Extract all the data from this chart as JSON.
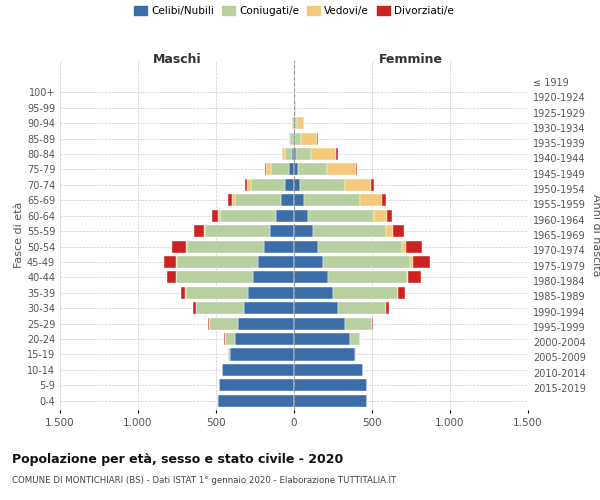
{
  "age_groups": [
    "0-4",
    "5-9",
    "10-14",
    "15-19",
    "20-24",
    "25-29",
    "30-34",
    "35-39",
    "40-44",
    "45-49",
    "50-54",
    "55-59",
    "60-64",
    "65-69",
    "70-74",
    "75-79",
    "80-84",
    "85-89",
    "90-94",
    "95-99",
    "100+"
  ],
  "birth_years": [
    "2015-2019",
    "2010-2014",
    "2005-2009",
    "2000-2004",
    "1995-1999",
    "1990-1994",
    "1985-1989",
    "1980-1984",
    "1975-1979",
    "1970-1974",
    "1965-1969",
    "1960-1964",
    "1955-1959",
    "1950-1954",
    "1945-1949",
    "1940-1944",
    "1935-1939",
    "1930-1934",
    "1925-1929",
    "1920-1924",
    "≤ 1919"
  ],
  "colors": {
    "celibinubili": "#3B6EA8",
    "coniugati": "#B8CFA0",
    "vedovi": "#F5C97A",
    "divorziati": "#CC2222"
  },
  "maschi": {
    "celibinubili": [
      490,
      480,
      460,
      410,
      380,
      360,
      320,
      295,
      265,
      230,
      195,
      155,
      115,
      85,
      55,
      30,
      12,
      8,
      5,
      3,
      2
    ],
    "coniugati": [
      1,
      2,
      3,
      10,
      65,
      185,
      310,
      400,
      490,
      520,
      490,
      415,
      360,
      295,
      220,
      120,
      45,
      15,
      3,
      0,
      0
    ],
    "vedovi": [
      0,
      0,
      0,
      0,
      0,
      0,
      1,
      2,
      3,
      5,
      8,
      10,
      15,
      20,
      25,
      30,
      20,
      8,
      2,
      0,
      0
    ],
    "divorziati": [
      0,
      0,
      0,
      0,
      2,
      5,
      15,
      30,
      55,
      80,
      90,
      60,
      35,
      20,
      12,
      8,
      3,
      2,
      0,
      0,
      0
    ]
  },
  "femmine": {
    "celibinubili": [
      470,
      465,
      440,
      390,
      360,
      325,
      285,
      250,
      215,
      185,
      155,
      120,
      90,
      65,
      40,
      25,
      12,
      8,
      5,
      3,
      1
    ],
    "coniugati": [
      0,
      1,
      2,
      8,
      60,
      175,
      305,
      415,
      510,
      560,
      540,
      470,
      420,
      360,
      285,
      185,
      100,
      40,
      12,
      3,
      0
    ],
    "vedovi": [
      0,
      0,
      0,
      0,
      0,
      1,
      2,
      4,
      8,
      15,
      25,
      45,
      85,
      140,
      170,
      185,
      160,
      100,
      45,
      10,
      2
    ],
    "divorziati": [
      0,
      0,
      0,
      1,
      2,
      8,
      20,
      45,
      80,
      110,
      100,
      70,
      35,
      22,
      18,
      12,
      8,
      4,
      2,
      0,
      0
    ]
  },
  "title": "Popolazione per età, sesso e stato civile - 2020",
  "subtitle": "COMUNE DI MONTICHIARI (BS) - Dati ISTAT 1° gennaio 2020 - Elaborazione TUTTITALIA.IT",
  "xlabel_left": "Maschi",
  "xlabel_right": "Femmine",
  "ylabel_left": "Fasce di età",
  "ylabel_right": "Anni di nascita",
  "xlim": 1500,
  "xticks": [
    -1500,
    -1000,
    -500,
    0,
    500,
    1000,
    1500
  ],
  "xtick_labels": [
    "1.500",
    "1.000",
    "500",
    "0",
    "500",
    "1.000",
    "1.500"
  ],
  "legend_labels": [
    "Celibi/Nubili",
    "Coniugati/e",
    "Vedovi/e",
    "Divorziati/e"
  ]
}
